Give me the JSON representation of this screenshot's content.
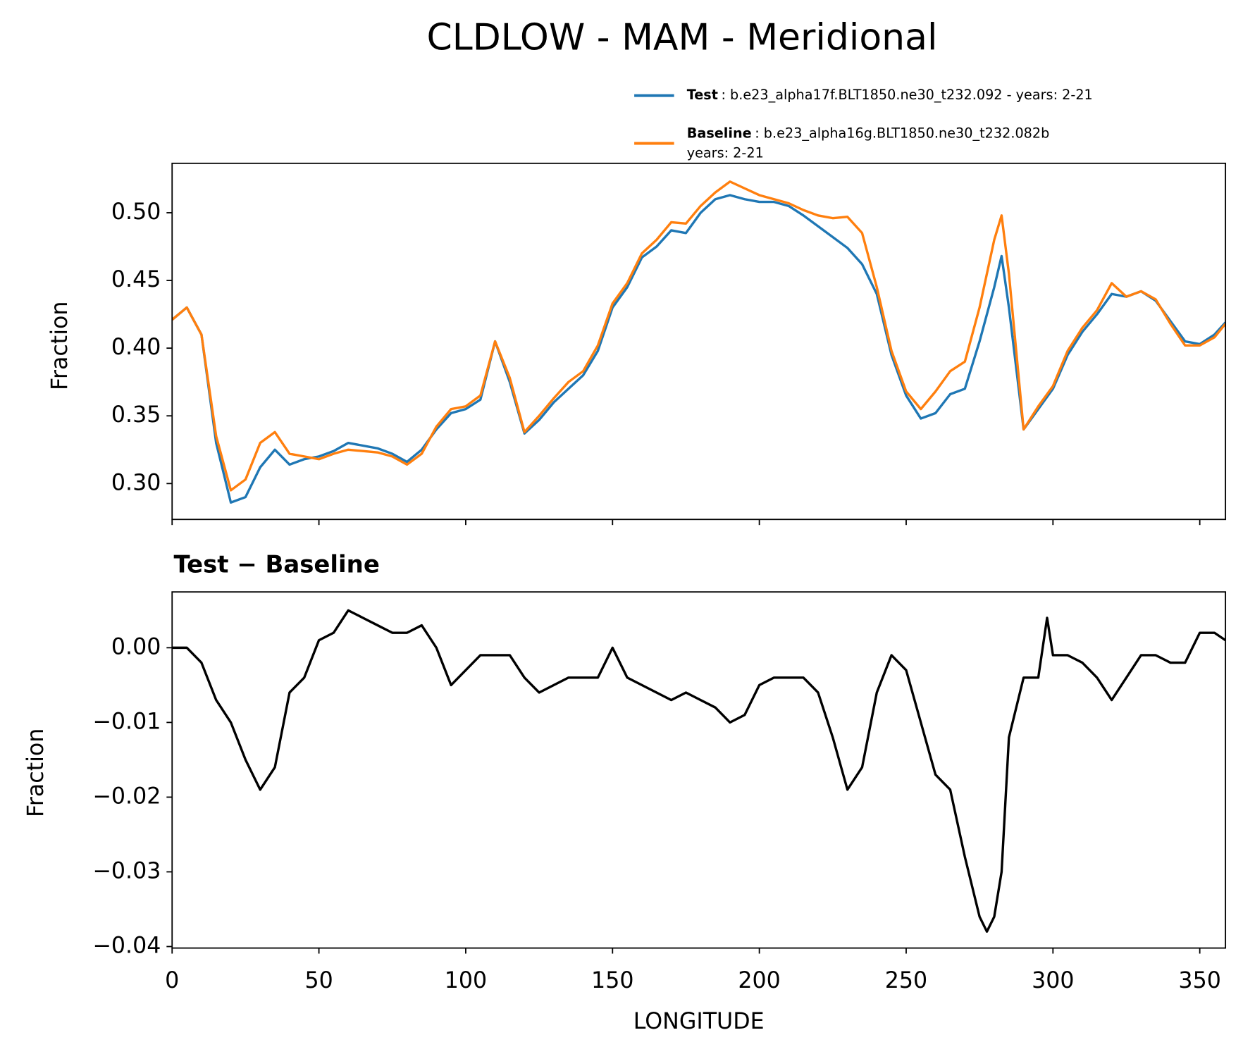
{
  "chart_data": [
    {
      "type": "line",
      "title": "CLDLOW - MAM - Meridional",
      "ylabel": "Fraction",
      "x": [
        0,
        5,
        10,
        15,
        20,
        25,
        30,
        35,
        40,
        45,
        50,
        55,
        60,
        65,
        70,
        75,
        80,
        85,
        90,
        95,
        100,
        105,
        110,
        115,
        120,
        125,
        130,
        135,
        140,
        145,
        150,
        155,
        160,
        165,
        170,
        175,
        180,
        185,
        190,
        195,
        200,
        205,
        210,
        215,
        220,
        225,
        230,
        235,
        240,
        245,
        250,
        255,
        260,
        265,
        270,
        275,
        280,
        282.5,
        285,
        290,
        295,
        300,
        305,
        310,
        315,
        320,
        325,
        330,
        335,
        340,
        345,
        350,
        355,
        358.75
      ],
      "series": [
        {
          "name": "Test",
          "description": [
            ": b.e23_alpha17f.BLT1850.ne30_t232.092 - years: 2-21"
          ],
          "color": "#1f77b4",
          "values": [
            0.421,
            0.43,
            0.41,
            0.33,
            0.286,
            0.29,
            0.312,
            0.325,
            0.314,
            0.318,
            0.32,
            0.324,
            0.33,
            0.328,
            0.326,
            0.322,
            0.316,
            0.325,
            0.34,
            0.352,
            0.355,
            0.362,
            0.405,
            0.375,
            0.337,
            0.347,
            0.36,
            0.37,
            0.38,
            0.398,
            0.43,
            0.445,
            0.467,
            0.475,
            0.487,
            0.485,
            0.5,
            0.51,
            0.513,
            0.51,
            0.508,
            0.508,
            0.505,
            0.498,
            0.49,
            0.482,
            0.474,
            0.462,
            0.44,
            0.395,
            0.365,
            0.348,
            0.352,
            0.366,
            0.37,
            0.405,
            0.445,
            0.468,
            0.43,
            0.34,
            0.355,
            0.37,
            0.395,
            0.412,
            0.425,
            0.44,
            0.438,
            0.442,
            0.435,
            0.42,
            0.405,
            0.403,
            0.41,
            0.419
          ]
        },
        {
          "name": "Baseline",
          "description": [
            ": b.e23_alpha16g.BLT1850.ne30_t232.082b",
            "years: 2-21"
          ],
          "color": "#ff7f0e",
          "values": [
            0.421,
            0.43,
            0.41,
            0.335,
            0.295,
            0.303,
            0.33,
            0.338,
            0.322,
            0.32,
            0.318,
            0.322,
            0.325,
            0.324,
            0.323,
            0.32,
            0.314,
            0.322,
            0.342,
            0.355,
            0.357,
            0.365,
            0.405,
            0.378,
            0.338,
            0.35,
            0.363,
            0.375,
            0.383,
            0.402,
            0.433,
            0.448,
            0.47,
            0.48,
            0.493,
            0.492,
            0.505,
            0.515,
            0.523,
            0.518,
            0.513,
            0.51,
            0.507,
            0.502,
            0.498,
            0.496,
            0.497,
            0.485,
            0.445,
            0.398,
            0.368,
            0.355,
            0.368,
            0.383,
            0.39,
            0.43,
            0.48,
            0.498,
            0.455,
            0.34,
            0.357,
            0.372,
            0.398,
            0.415,
            0.428,
            0.448,
            0.438,
            0.442,
            0.436,
            0.418,
            0.402,
            0.402,
            0.408,
            0.418
          ]
        }
      ],
      "xlim": [
        0,
        358.75
      ],
      "xticks": [
        0,
        50,
        100,
        150,
        200,
        250,
        300,
        350
      ],
      "ylim": [
        0.2735,
        0.5365
      ],
      "yticks": [
        {
          "value": 0.3,
          "label": "0.30"
        },
        0.35,
        {
          "value": 0.4,
          "label": "0.40"
        },
        0.45,
        {
          "value": 0.5,
          "label": "0.50"
        }
      ]
    },
    {
      "type": "line",
      "title": "Test − Baseline",
      "xlabel": "LONGITUDE",
      "ylabel": "Fraction",
      "x": [
        0,
        5,
        10,
        15,
        20,
        25,
        30,
        35,
        40,
        45,
        50,
        55,
        60,
        65,
        70,
        75,
        80,
        85,
        90,
        95,
        100,
        105,
        110,
        115,
        120,
        125,
        130,
        135,
        140,
        145,
        150,
        155,
        160,
        165,
        170,
        175,
        180,
        185,
        190,
        195,
        200,
        205,
        210,
        215,
        220,
        225,
        230,
        235,
        240,
        245,
        250,
        255,
        260,
        265,
        270,
        275,
        277.5,
        280,
        282.5,
        285,
        290,
        295,
        298,
        300,
        305,
        310,
        315,
        320,
        325,
        330,
        335,
        340,
        345,
        350,
        355,
        358.75
      ],
      "series": [
        {
          "color": "#000000",
          "values": [
            0.0,
            0.0,
            -0.002,
            -0.007,
            -0.01,
            -0.015,
            -0.019,
            -0.016,
            -0.006,
            -0.004,
            0.001,
            0.002,
            0.005,
            0.004,
            0.003,
            0.002,
            0.002,
            0.003,
            0.0,
            -0.005,
            -0.003,
            -0.001,
            -0.001,
            -0.001,
            -0.004,
            -0.006,
            -0.005,
            -0.004,
            -0.004,
            -0.004,
            0.0,
            -0.004,
            -0.005,
            -0.006,
            -0.007,
            -0.006,
            -0.007,
            -0.008,
            -0.01,
            -0.009,
            -0.005,
            -0.004,
            -0.004,
            -0.004,
            -0.006,
            -0.012,
            -0.019,
            -0.016,
            -0.006,
            -0.001,
            -0.003,
            -0.01,
            -0.017,
            -0.019,
            -0.028,
            -0.036,
            -0.038,
            -0.036,
            -0.03,
            -0.012,
            -0.004,
            -0.004,
            0.004,
            -0.001,
            -0.001,
            -0.002,
            -0.004,
            -0.007,
            -0.004,
            -0.001,
            -0.001,
            -0.002,
            -0.002,
            0.002,
            0.002,
            0.001
          ]
        }
      ],
      "xlim": [
        0,
        358.75
      ],
      "xticks": [
        0,
        50,
        100,
        150,
        200,
        250,
        300,
        350
      ],
      "ylim": [
        -0.0402,
        0.00747
      ],
      "yticks": [
        {
          "value": -0.04,
          "label": "−0.04"
        },
        {
          "value": -0.03,
          "label": "−0.03"
        },
        {
          "value": -0.02,
          "label": "−0.02"
        },
        {
          "value": -0.01,
          "label": "−0.01"
        },
        {
          "value": 0,
          "label": "0.00"
        }
      ]
    }
  ]
}
